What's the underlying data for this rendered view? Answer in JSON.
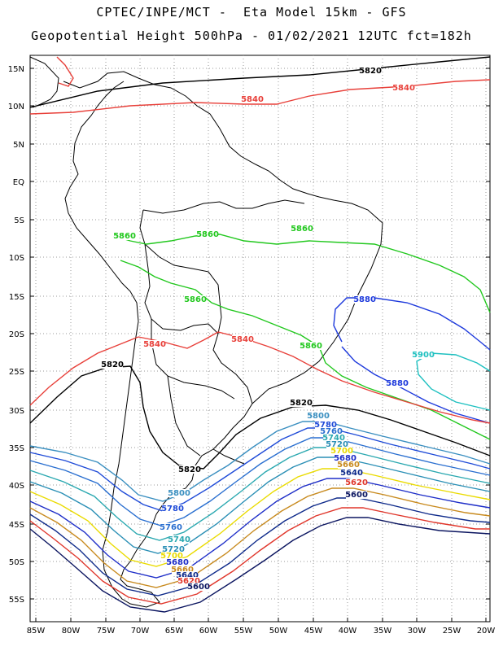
{
  "title": {
    "line1": "CPTEC/INPE/MCT -  Eta Model 15km - GFS",
    "line2": "Geopotential Height 500hPa - 01/02/2021 12UTC fct=182h"
  },
  "axes": {
    "lat_labels": [
      "15N",
      "10N",
      "5N",
      "EQ",
      "5S",
      "10S",
      "15S",
      "20S",
      "25S",
      "30S",
      "35S",
      "40S",
      "45S",
      "50S",
      "55S"
    ],
    "lon_labels": [
      "85W",
      "80W",
      "75W",
      "70W",
      "65W",
      "60W",
      "55W",
      "50W",
      "45W",
      "40W",
      "35W",
      "30W",
      "25W",
      "20W"
    ]
  },
  "colors": {
    "c5600": "#0b1560",
    "c5620": "#e0362b",
    "c5640": "#0e2a8a",
    "c5660": "#c88a1e",
    "c5680": "#1e2ec8",
    "c5700": "#eadb00",
    "c5720": "#2a8fb5",
    "c5740": "#2aa8b0",
    "c5760": "#2a6fd0",
    "c5780": "#1f4bd8",
    "c5800": "#3a8fc0",
    "c5820": "#000000",
    "c5840": "#e8403a",
    "c5860": "#22c81e",
    "c5880": "#1e3adc",
    "c5900": "#1ec0c0"
  },
  "contour_labels": [
    {
      "id": "l5820-n",
      "text": "5820"
    },
    {
      "id": "l5840-n1",
      "text": "5840"
    },
    {
      "id": "l5840-n2",
      "text": "5840"
    },
    {
      "id": "l5860-a",
      "text": "5860"
    },
    {
      "id": "l5860-b",
      "text": "5860"
    },
    {
      "id": "l5860-c",
      "text": "5860"
    },
    {
      "id": "l5860-d",
      "text": "5860"
    },
    {
      "id": "l5860-e",
      "text": "5860"
    },
    {
      "id": "l5880-a",
      "text": "5880"
    },
    {
      "id": "l5880-b",
      "text": "5880"
    },
    {
      "id": "l5900",
      "text": "5900"
    },
    {
      "id": "l5840-s1",
      "text": "5840"
    },
    {
      "id": "l5840-s2",
      "text": "5840"
    },
    {
      "id": "l5820-w",
      "text": "5820"
    },
    {
      "id": "l5820-e",
      "text": "5820"
    },
    {
      "id": "l5800-e",
      "text": "5800"
    },
    {
      "id": "l5780-e",
      "text": "5780"
    },
    {
      "id": "l5760-e",
      "text": "5760"
    },
    {
      "id": "l5740-e",
      "text": "5740"
    },
    {
      "id": "l5720-e",
      "text": "5720"
    },
    {
      "id": "l5700-e",
      "text": "5700"
    },
    {
      "id": "l5680-e",
      "text": "5680"
    },
    {
      "id": "l5660-e",
      "text": "5660"
    },
    {
      "id": "l5640-e",
      "text": "5640"
    },
    {
      "id": "l5620-e",
      "text": "5620"
    },
    {
      "id": "l5600-e",
      "text": "5600"
    },
    {
      "id": "l5820-c",
      "text": "5820"
    },
    {
      "id": "l5800-w",
      "text": "5800"
    },
    {
      "id": "l5780-w",
      "text": "5780"
    },
    {
      "id": "l5760-w",
      "text": "5760"
    },
    {
      "id": "l5740-w",
      "text": "5740"
    },
    {
      "id": "l5720-w",
      "text": "5720"
    },
    {
      "id": "l5700-w",
      "text": "5700"
    },
    {
      "id": "l5680-w",
      "text": "5680"
    },
    {
      "id": "l5660-w",
      "text": "5660"
    },
    {
      "id": "l5640-w",
      "text": "5640"
    },
    {
      "id": "l5620-w",
      "text": "5620"
    },
    {
      "id": "l5600-w",
      "text": "5600"
    }
  ]
}
